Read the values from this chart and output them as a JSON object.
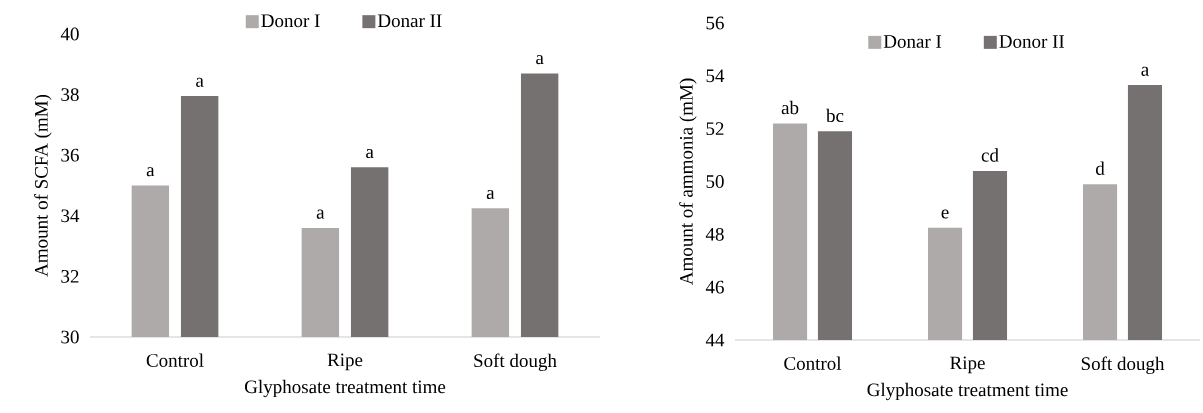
{
  "chart_data": [
    {
      "type": "bar",
      "xlabel": "Glyphosate treatment time",
      "ylabel": "Amount of SCFA (mM)",
      "categories": [
        "Control",
        "Ripe",
        "Soft dough"
      ],
      "series": [
        {
          "name": "Donor I",
          "color": "#aeaaaa",
          "values": [
            35.0,
            33.6,
            34.25
          ],
          "value_labels": [
            "a",
            "a",
            "a"
          ]
        },
        {
          "name": "Donar II",
          "color": "#767171",
          "values": [
            37.95,
            35.6,
            38.7
          ],
          "value_labels": [
            "a",
            "a",
            "a"
          ]
        }
      ],
      "ylim": [
        30,
        40
      ],
      "yticks": [
        30,
        32,
        34,
        36,
        38,
        40
      ],
      "grid": false,
      "legend": "top"
    },
    {
      "type": "bar",
      "xlabel": "Glyphosate treatment time",
      "ylabel": "Amount of ammonia (mM)",
      "categories": [
        "Control",
        "Ripe",
        "Soft dough"
      ],
      "series": [
        {
          "name": "Donar I",
          "color": "#aeaaaa",
          "values": [
            52.2,
            48.25,
            49.9
          ],
          "value_labels": [
            "ab",
            "e",
            "d"
          ]
        },
        {
          "name": "Donor II",
          "color": "#767171",
          "values": [
            51.9,
            50.4,
            53.65
          ],
          "value_labels": [
            "bc",
            "cd",
            "a"
          ]
        }
      ],
      "ylim": [
        44,
        56
      ],
      "yticks": [
        44,
        46,
        48,
        50,
        52,
        54,
        56
      ],
      "grid": false,
      "legend": "top"
    }
  ]
}
